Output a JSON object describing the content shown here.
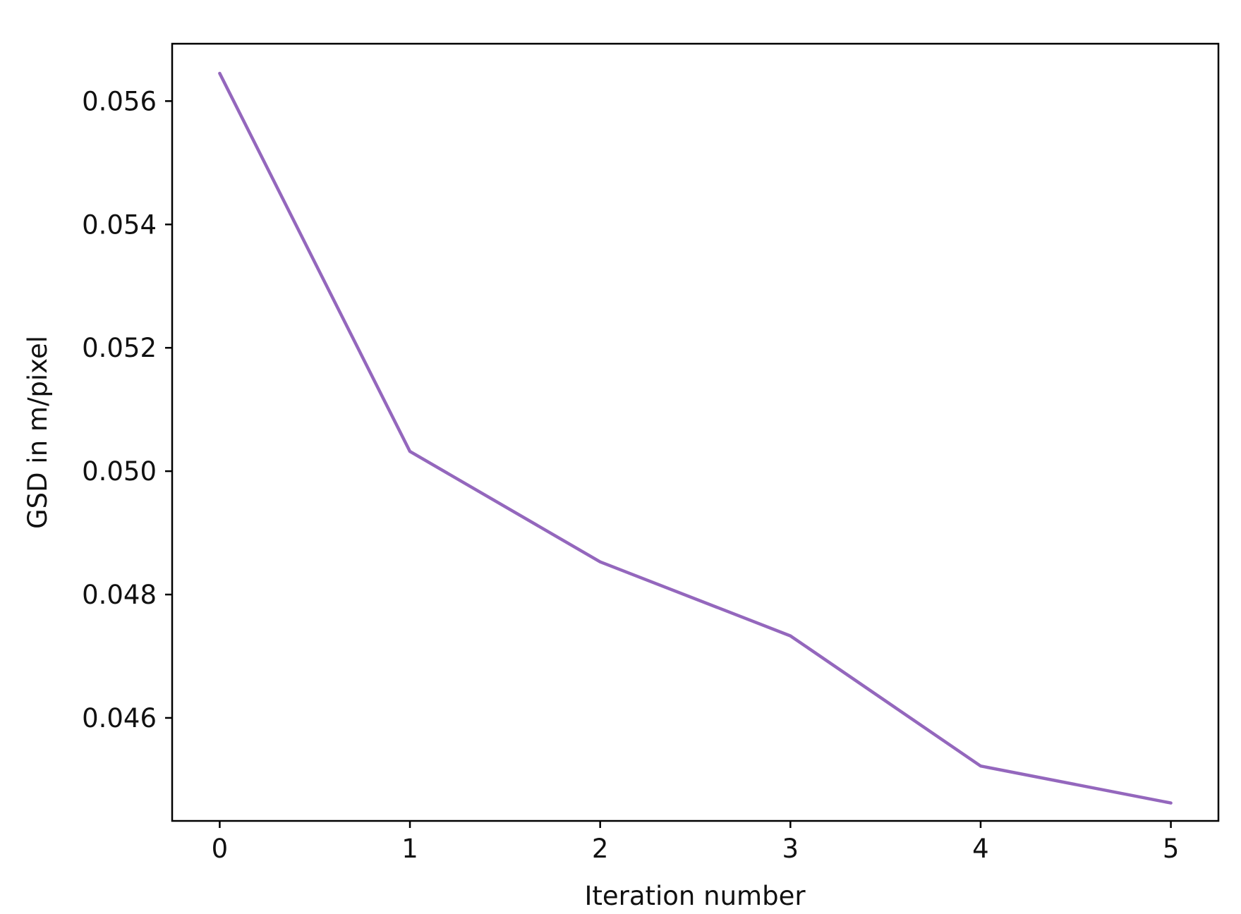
{
  "chart_data": {
    "type": "line",
    "title": "",
    "xlabel": "Iteration number",
    "ylabel": "GSD in m/pixel",
    "x": [
      0,
      1,
      2,
      3,
      4,
      5
    ],
    "series": [
      {
        "values": [
          0.05645,
          0.05032,
          0.04853,
          0.04733,
          0.04522,
          0.04462
        ],
        "color": "#9467bd"
      }
    ],
    "xticks": [
      0,
      1,
      2,
      3,
      4,
      5
    ],
    "xtick_labels": [
      "0",
      "1",
      "2",
      "3",
      "4",
      "5"
    ],
    "yticks": [
      0.046,
      0.048,
      0.05,
      0.052,
      0.054,
      0.056
    ],
    "ytick_labels": [
      "0.046",
      "0.048",
      "0.050",
      "0.052",
      "0.054",
      "0.056"
    ],
    "xlim": [
      -0.25,
      5.25
    ],
    "ylim": [
      0.04433,
      0.05693
    ],
    "grid": false,
    "legend": "none"
  }
}
